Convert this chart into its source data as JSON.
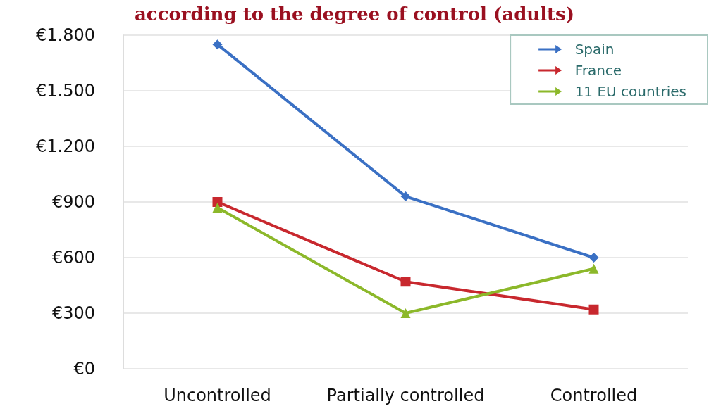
{
  "chart_data": {
    "type": "line",
    "title": "according to the degree of control (adults)",
    "categories": [
      "Uncontrolled",
      "Partially controlled",
      "Controlled"
    ],
    "series": [
      {
        "name": "Spain",
        "color": "#3a70c4",
        "marker": "diamond",
        "values": [
          1750,
          930,
          600
        ]
      },
      {
        "name": "France",
        "color": "#c8282e",
        "marker": "square",
        "values": [
          900,
          470,
          320
        ]
      },
      {
        "name": "11 EU countries",
        "color": "#8cb82a",
        "marker": "triangle",
        "values": [
          870,
          300,
          540
        ]
      }
    ],
    "ylim": [
      0,
      1800
    ],
    "yticks": [
      {
        "value": 0,
        "label": "€0"
      },
      {
        "value": 300,
        "label": "€300"
      },
      {
        "value": 600,
        "label": "€600"
      },
      {
        "value": 900,
        "label": "€900"
      },
      {
        "value": 1200,
        "label": "€1.200"
      },
      {
        "value": 1500,
        "label": "€1.500"
      },
      {
        "value": 1800,
        "label": "€1.800"
      }
    ],
    "grid": "y",
    "legend": "top right"
  }
}
